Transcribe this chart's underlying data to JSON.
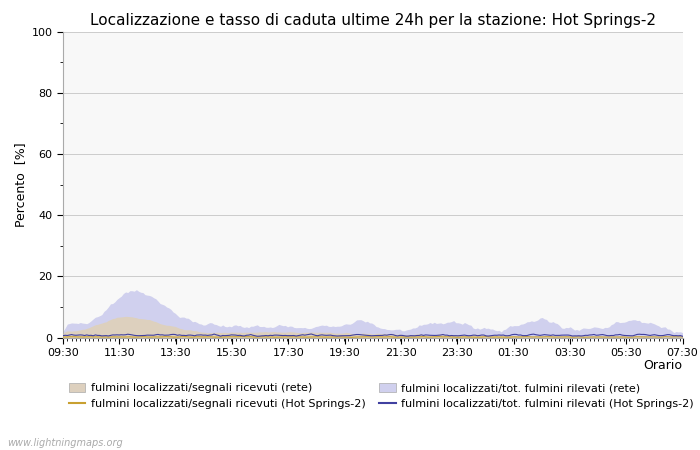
{
  "title": "Localizzazione e tasso di caduta ultime 24h per la stazione: Hot Springs-2",
  "xlabel": "Orario",
  "ylabel": "Percento  [%]",
  "ylim": [
    0,
    100
  ],
  "yticks": [
    0,
    20,
    40,
    60,
    80,
    100
  ],
  "yticks_minor": [
    10,
    30,
    50,
    70,
    90
  ],
  "x_labels": [
    "09:30",
    "11:30",
    "13:30",
    "15:30",
    "17:30",
    "19:30",
    "21:30",
    "23:30",
    "01:30",
    "03:30",
    "05:30",
    "07:30"
  ],
  "n_points": 288,
  "watermark": "www.lightningmaps.org",
  "fill_rete_color": "#ddd0be",
  "fill_total_rete_color": "#d0d0ee",
  "line_hs_color": "#c8a030",
  "line_hs_total_color": "#4040a0",
  "background_color": "#f8f8f8",
  "grid_color": "#cccccc",
  "title_fontsize": 11,
  "axis_fontsize": 9,
  "tick_fontsize": 8,
  "legend_fontsize": 8
}
